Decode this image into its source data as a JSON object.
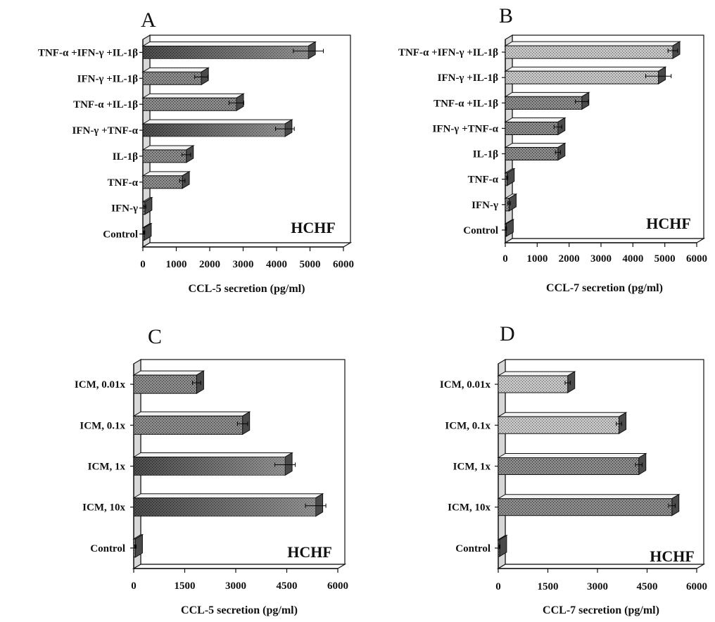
{
  "chart_data": [
    {
      "type": "bar",
      "orientation": "horizontal",
      "panel": "A",
      "categories": [
        "TNF-α +IFN-γ +IL-1β",
        "IFN-γ +IL-1β",
        "TNF-α +IL-1β",
        "IFN-γ +TNF-α",
        "IL-1β",
        "TNF-α",
        "IFN-γ",
        "Control"
      ],
      "values": [
        4950,
        1750,
        2800,
        4250,
        1300,
        1180,
        60,
        40
      ],
      "errors": [
        450,
        200,
        220,
        280,
        130,
        80,
        30,
        20
      ],
      "xlabel": "CCL-5 secretion (pg/ml)",
      "xlim": [
        0,
        6000
      ],
      "xticks": [
        0,
        1000,
        2000,
        3000,
        4000,
        5000,
        6000
      ],
      "annotation": "HCHF",
      "shading": [
        "dark",
        "mid",
        "mid",
        "dark",
        "mid",
        "mid",
        "mid",
        "mid"
      ]
    },
    {
      "type": "bar",
      "orientation": "horizontal",
      "panel": "B",
      "categories": [
        "TNF-α +IFN-γ +IL-1β",
        "IFN-γ +IL-1β",
        "TNF-α +IL-1β",
        "IFN-γ +TNF-α",
        "IL-1β",
        "TNF-α",
        "IFN-γ",
        "Control"
      ],
      "values": [
        5250,
        4800,
        2400,
        1650,
        1650,
        60,
        120,
        30
      ],
      "errors": [
        150,
        400,
        200,
        120,
        80,
        20,
        40,
        10
      ],
      "xlabel": "CCL-7 secretion (pg/ml)",
      "xlim": [
        0,
        6000
      ],
      "xticks": [
        0,
        1000,
        2000,
        3000,
        4000,
        5000,
        6000
      ],
      "annotation": "HCHF",
      "shading": [
        "light",
        "light",
        "mid",
        "mid",
        "mid",
        "mid",
        "mid",
        "mid"
      ]
    },
    {
      "type": "bar",
      "orientation": "horizontal",
      "panel": "C",
      "categories": [
        "ICM, 0.01x",
        "ICM, 0.1x",
        "ICM, 1x",
        "ICM, 10x",
        "Control"
      ],
      "values": [
        1850,
        3200,
        4450,
        5350,
        50
      ],
      "errors": [
        120,
        150,
        300,
        300,
        20
      ],
      "xlabel": "CCL-5 secretion (pg/ml)",
      "xlim": [
        0,
        6000
      ],
      "xticks": [
        0,
        1500,
        3000,
        4500,
        6000
      ],
      "annotation": "HCHF",
      "shading": [
        "mid",
        "mid",
        "dark",
        "dark",
        "mid"
      ]
    },
    {
      "type": "bar",
      "orientation": "horizontal",
      "panel": "D",
      "categories": [
        "ICM, 0.01x",
        "ICM, 0.1x",
        "ICM, 1x",
        "ICM, 10x",
        "Control"
      ],
      "values": [
        2100,
        3650,
        4250,
        5250,
        40
      ],
      "errors": [
        80,
        80,
        100,
        100,
        15
      ],
      "xlabel": "CCL-7 secretion (pg/ml)",
      "xlim": [
        0,
        6000
      ],
      "xticks": [
        0,
        1500,
        3000,
        4500,
        6000
      ],
      "annotation": "HCHF",
      "shading": [
        "light",
        "light",
        "mid",
        "mid",
        "mid"
      ]
    }
  ],
  "colors": {
    "dark_bar": "#2a2a2a",
    "mid_bar": "#6e6e6e",
    "light_bar": "#a8a8a8",
    "frame": "#111111"
  }
}
